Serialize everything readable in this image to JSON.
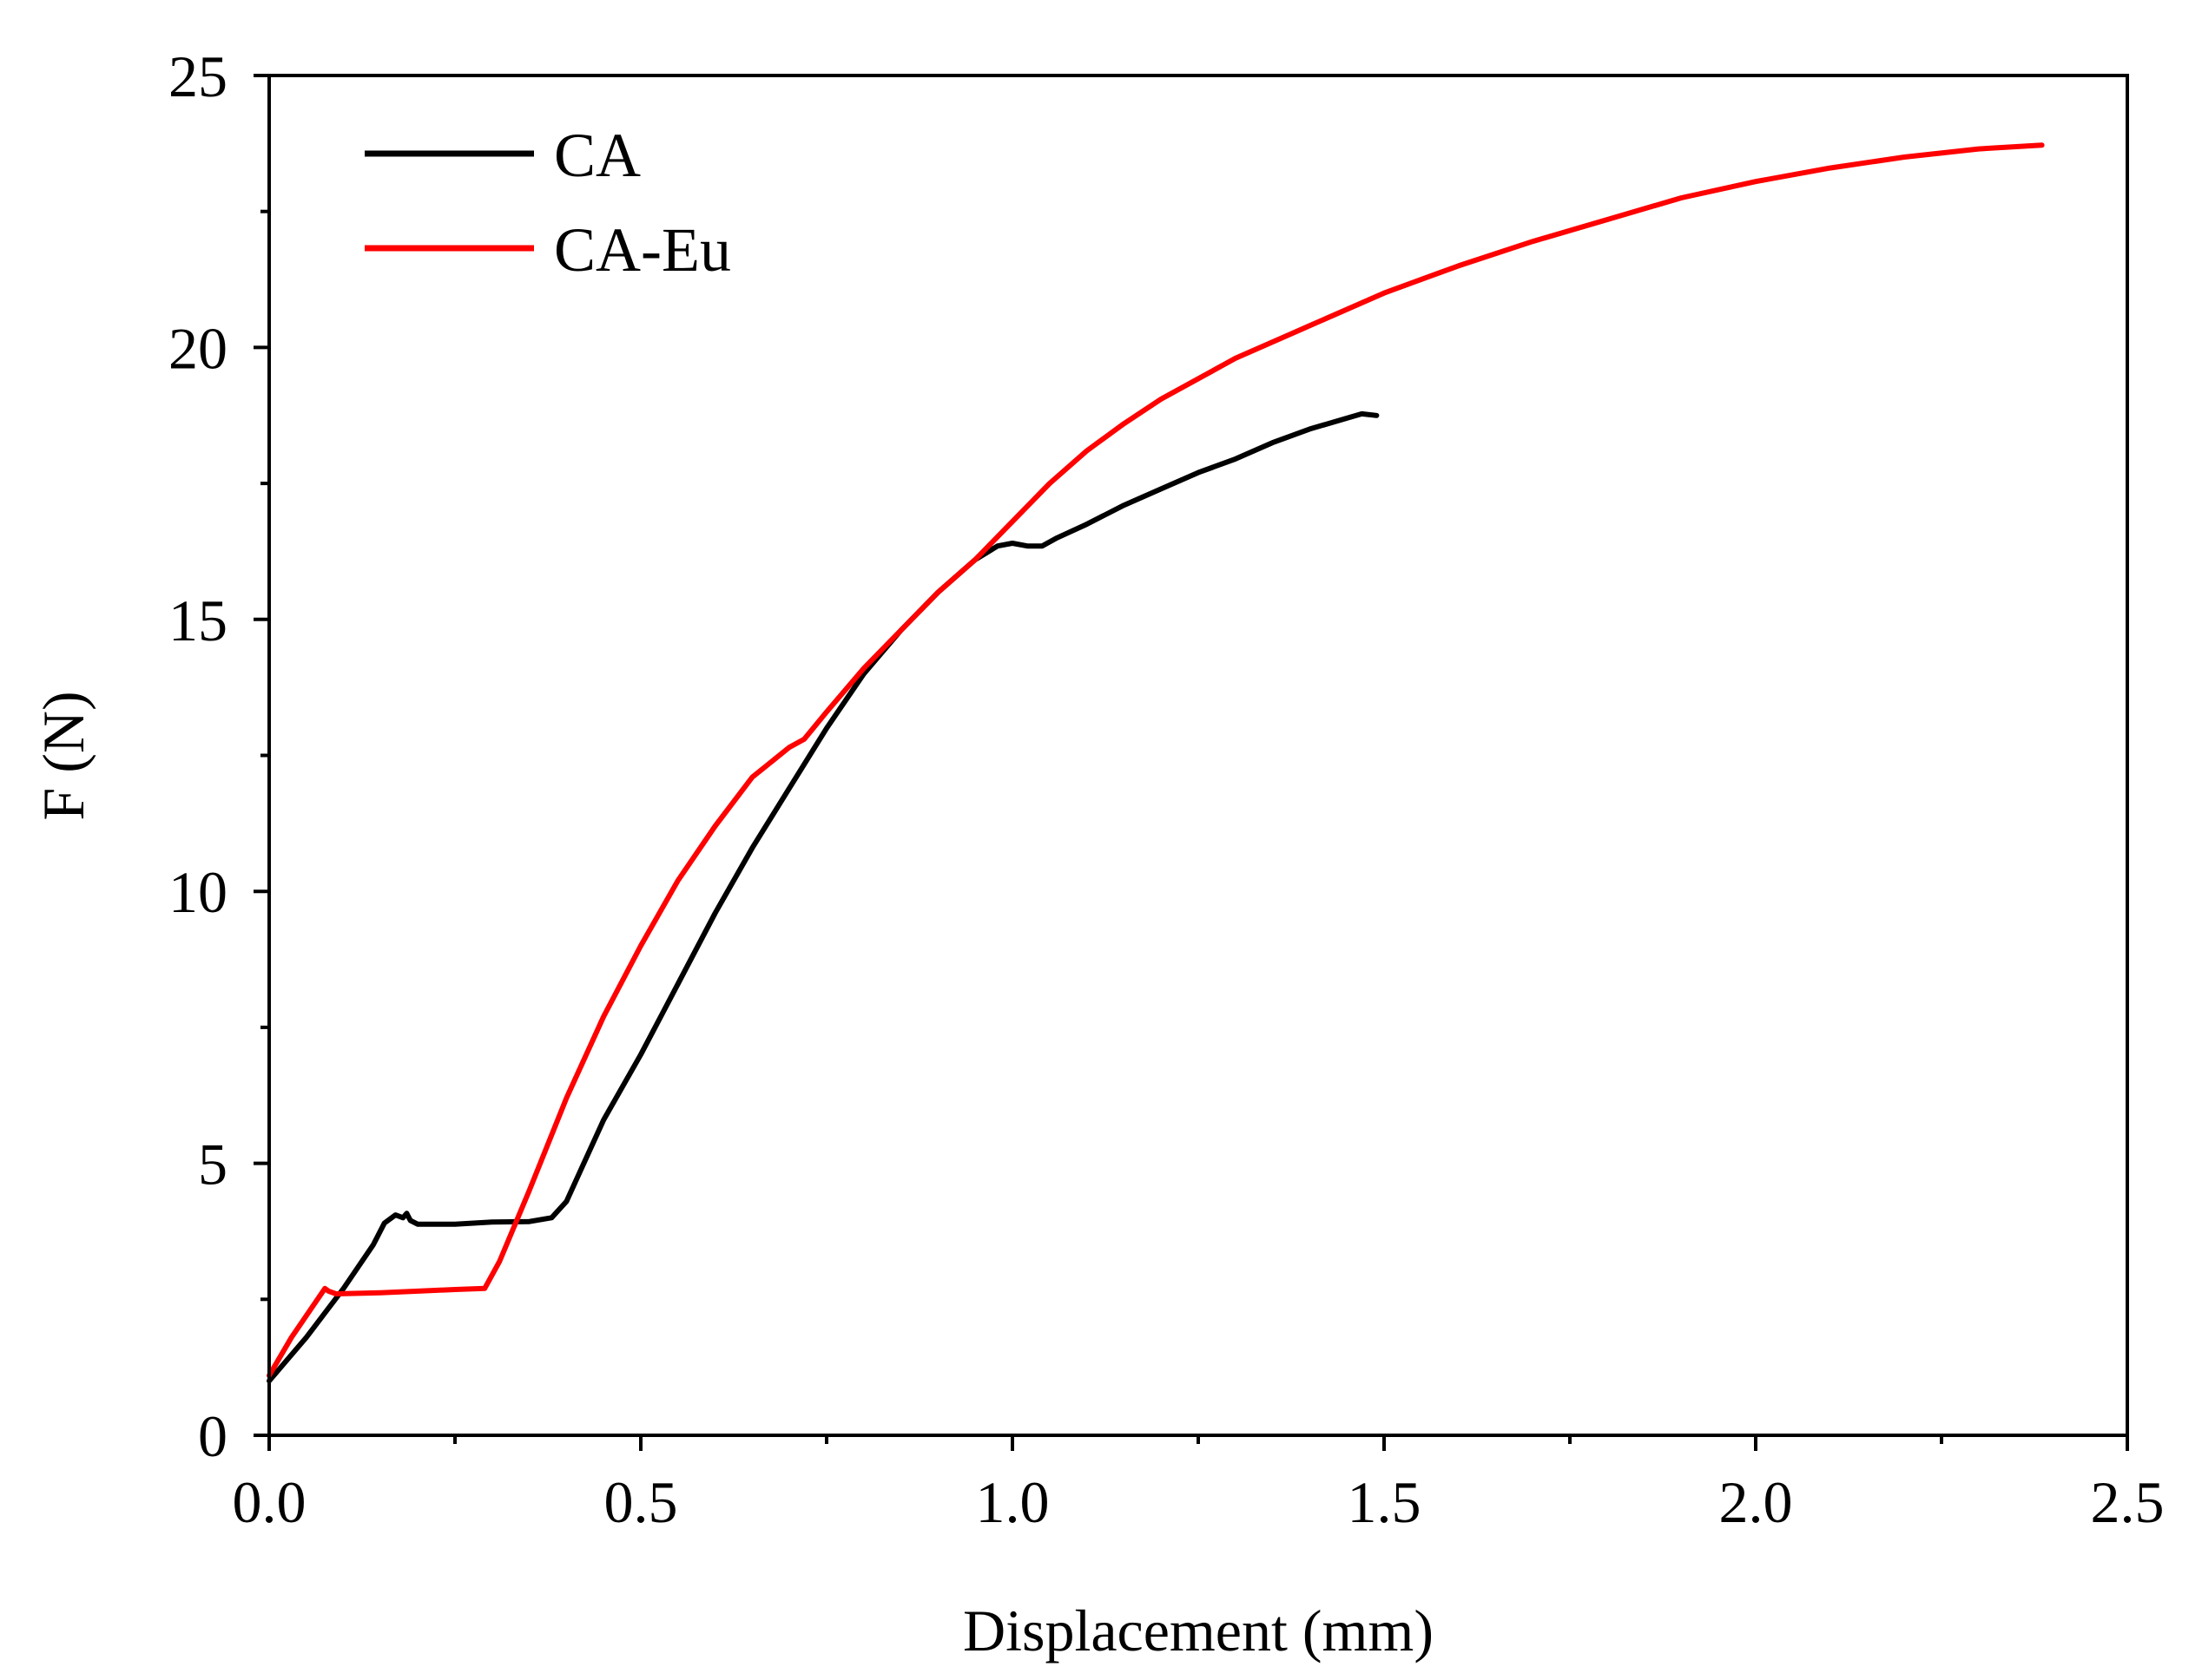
{
  "chart_data": {
    "type": "line",
    "title": "",
    "xlabel": "Displacement (mm)",
    "ylabel": "F (N)",
    "xlim": [
      0.0,
      2.5
    ],
    "ylim": [
      0,
      25
    ],
    "x_ticks": [
      "0.0",
      "0.5",
      "1.0",
      "1.5",
      "2.0",
      "2.5"
    ],
    "y_ticks": [
      "0",
      "5",
      "10",
      "15",
      "20",
      "25"
    ],
    "grid": false,
    "legend_position": "top-left",
    "series": [
      {
        "name": "CA",
        "color": "#000000",
        "points": [
          [
            0.0,
            1.0
          ],
          [
            0.05,
            1.8
          ],
          [
            0.1,
            2.7
          ],
          [
            0.14,
            3.5
          ],
          [
            0.155,
            3.9
          ],
          [
            0.17,
            4.05
          ],
          [
            0.18,
            4.0
          ],
          [
            0.185,
            4.08
          ],
          [
            0.19,
            3.95
          ],
          [
            0.2,
            3.88
          ],
          [
            0.25,
            3.88
          ],
          [
            0.3,
            3.92
          ],
          [
            0.35,
            3.93
          ],
          [
            0.38,
            4.0
          ],
          [
            0.4,
            4.3
          ],
          [
            0.42,
            4.9
          ],
          [
            0.45,
            5.8
          ],
          [
            0.5,
            7.0
          ],
          [
            0.55,
            8.3
          ],
          [
            0.6,
            9.6
          ],
          [
            0.65,
            10.8
          ],
          [
            0.7,
            11.9
          ],
          [
            0.75,
            13.0
          ],
          [
            0.8,
            14.0
          ],
          [
            0.85,
            14.8
          ],
          [
            0.9,
            15.5
          ],
          [
            0.95,
            16.1
          ],
          [
            0.98,
            16.35
          ],
          [
            1.0,
            16.4
          ],
          [
            1.02,
            16.35
          ],
          [
            1.04,
            16.35
          ],
          [
            1.06,
            16.5
          ],
          [
            1.1,
            16.75
          ],
          [
            1.15,
            17.1
          ],
          [
            1.2,
            17.4
          ],
          [
            1.25,
            17.7
          ],
          [
            1.3,
            17.95
          ],
          [
            1.35,
            18.25
          ],
          [
            1.4,
            18.5
          ],
          [
            1.45,
            18.7
          ],
          [
            1.47,
            18.78
          ],
          [
            1.49,
            18.75
          ]
        ]
      },
      {
        "name": "CA-Eu",
        "color": "#ff0000",
        "points": [
          [
            0.0,
            1.1
          ],
          [
            0.03,
            1.8
          ],
          [
            0.06,
            2.4
          ],
          [
            0.075,
            2.7
          ],
          [
            0.08,
            2.65
          ],
          [
            0.09,
            2.6
          ],
          [
            0.15,
            2.62
          ],
          [
            0.2,
            2.65
          ],
          [
            0.25,
            2.68
          ],
          [
            0.29,
            2.7
          ],
          [
            0.31,
            3.2
          ],
          [
            0.35,
            4.5
          ],
          [
            0.4,
            6.2
          ],
          [
            0.45,
            7.7
          ],
          [
            0.5,
            9.0
          ],
          [
            0.55,
            10.2
          ],
          [
            0.6,
            11.2
          ],
          [
            0.65,
            12.1
          ],
          [
            0.7,
            12.65
          ],
          [
            0.72,
            12.8
          ],
          [
            0.75,
            13.3
          ],
          [
            0.8,
            14.1
          ],
          [
            0.85,
            14.8
          ],
          [
            0.9,
            15.5
          ],
          [
            0.95,
            16.1
          ],
          [
            1.0,
            16.8
          ],
          [
            1.05,
            17.5
          ],
          [
            1.1,
            18.1
          ],
          [
            1.15,
            18.6
          ],
          [
            1.2,
            19.05
          ],
          [
            1.3,
            19.8
          ],
          [
            1.4,
            20.4
          ],
          [
            1.5,
            21.0
          ],
          [
            1.6,
            21.5
          ],
          [
            1.7,
            21.95
          ],
          [
            1.8,
            22.35
          ],
          [
            1.9,
            22.75
          ],
          [
            2.0,
            23.05
          ],
          [
            2.1,
            23.3
          ],
          [
            2.2,
            23.5
          ],
          [
            2.3,
            23.65
          ],
          [
            2.385,
            23.72
          ]
        ]
      }
    ]
  }
}
